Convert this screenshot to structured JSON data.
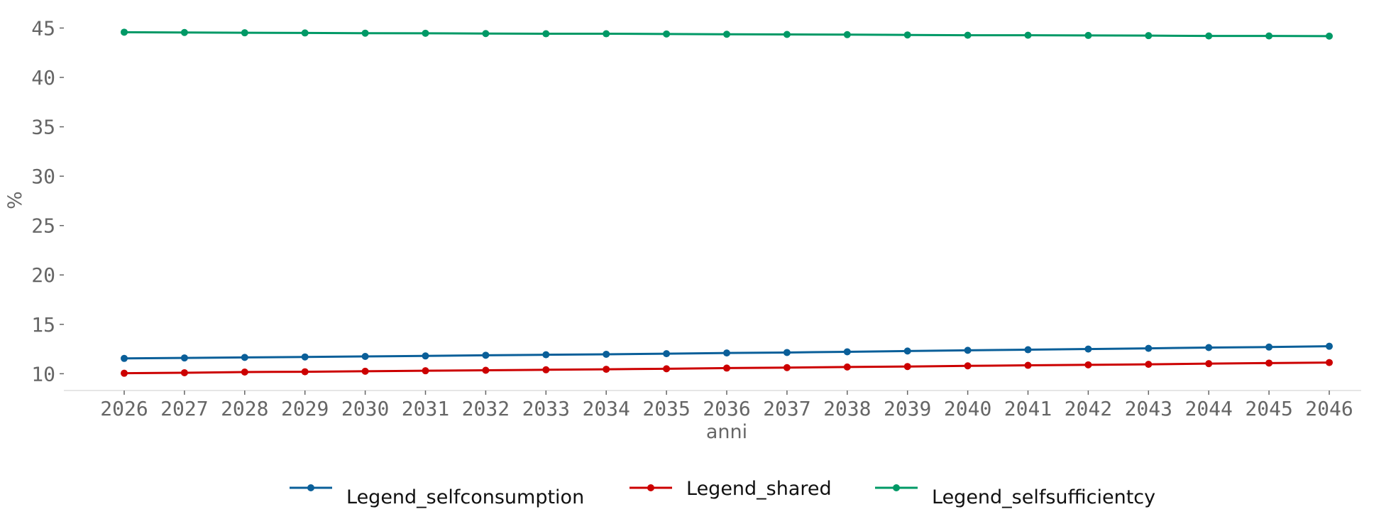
{
  "chart_data": {
    "type": "line",
    "title": "",
    "xlabel": "anni",
    "ylabel": "%",
    "x": [
      "2026",
      "2027",
      "2028",
      "2029",
      "2030",
      "2031",
      "2032",
      "2033",
      "2034",
      "2035",
      "2036",
      "2037",
      "2038",
      "2039",
      "2040",
      "2041",
      "2042",
      "2043",
      "2044",
      "2045",
      "2046"
    ],
    "y_ticks": [
      10,
      15,
      20,
      25,
      30,
      35,
      40,
      45
    ],
    "ylim": [
      8.3,
      46.4
    ],
    "grid": false,
    "legend_position": "bottom-center",
    "series": [
      {
        "name": "Legend_selfconsumption",
        "color": "#0a5f99",
        "values": [
          11.55,
          11.6,
          11.65,
          11.7,
          11.75,
          11.8,
          11.87,
          11.92,
          11.97,
          12.03,
          12.1,
          12.15,
          12.22,
          12.3,
          12.37,
          12.43,
          12.5,
          12.57,
          12.65,
          12.7,
          12.78
        ]
      },
      {
        "name": "Legend_shared",
        "color": "#cc0000",
        "values": [
          10.05,
          10.1,
          10.17,
          10.2,
          10.25,
          10.3,
          10.35,
          10.4,
          10.45,
          10.5,
          10.57,
          10.62,
          10.68,
          10.73,
          10.8,
          10.85,
          10.9,
          10.95,
          11.02,
          11.08,
          11.13
        ]
      },
      {
        "name": "Legend_selfsufficientcy",
        "color": "#009966",
        "values": [
          44.58,
          44.55,
          44.52,
          44.5,
          44.48,
          44.47,
          44.44,
          44.42,
          44.42,
          44.4,
          44.37,
          44.35,
          44.33,
          44.3,
          44.27,
          44.27,
          44.25,
          44.23,
          44.2,
          44.2,
          44.18
        ]
      }
    ]
  }
}
